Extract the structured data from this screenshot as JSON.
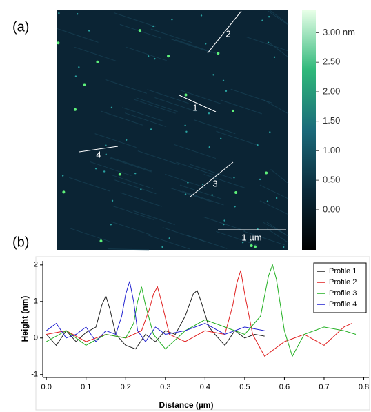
{
  "chart_data": [
    {
      "type": "image",
      "panel_label": "(a)",
      "colorbar_lim": [
        -0.68,
        3.38
      ],
      "colorbar_ticks": [
        {
          "value": 3,
          "label": "3.00 nm"
        },
        {
          "value": 2.5,
          "label": "2.50"
        },
        {
          "value": 2,
          "label": "2.00"
        },
        {
          "value": 1.5,
          "label": "1.50"
        },
        {
          "value": 1,
          "label": "1.00"
        },
        {
          "value": 0.5,
          "label": "0.50"
        },
        {
          "value": 0,
          "label": "0.00"
        }
      ],
      "annotations": [
        "1",
        "2",
        "3",
        "4"
      ],
      "scale_bar": "1 µm"
    },
    {
      "type": "line",
      "panel_label": "(b)",
      "x_label": "Distance (µm)",
      "y_label": "Height (nm)",
      "xlim": [
        -0.009,
        0.813
      ],
      "ylim": [
        -1.08,
        2.11
      ],
      "xticks": [
        {
          "value": 0,
          "label": "0.0"
        },
        0.1,
        0.2,
        0.3,
        0.4,
        0.5,
        0.6,
        0.7,
        0.8
      ],
      "yticks": [
        -1,
        0,
        1,
        2
      ],
      "legend": "top-right",
      "series": [
        {
          "name": "Profile 1",
          "color": "#222222",
          "x": [
            0,
            0.025,
            0.05,
            0.075,
            0.1,
            0.125,
            0.14,
            0.15,
            0.16,
            0.175,
            0.2,
            0.225,
            0.25,
            0.275,
            0.3,
            0.325,
            0.35,
            0.37,
            0.38,
            0.39,
            0.41,
            0.425,
            0.45,
            0.475,
            0.5,
            0.525,
            0.55
          ],
          "values": [
            0.1,
            -0.2,
            0.2,
            -0.1,
            0.15,
            0.3,
            0.9,
            1.15,
            0.8,
            0.1,
            -0.2,
            -0.3,
            0.1,
            -0.1,
            0.2,
            0.1,
            0.6,
            1.2,
            1.3,
            1.0,
            0.3,
            0.1,
            -0.2,
            0.2,
            0,
            0.1,
            0.05
          ]
        },
        {
          "name": "Profile 2",
          "color": "#e02020",
          "x": [
            0,
            0.05,
            0.1,
            0.15,
            0.2,
            0.24,
            0.26,
            0.27,
            0.28,
            0.29,
            0.31,
            0.35,
            0.4,
            0.45,
            0.47,
            0.48,
            0.49,
            0.5,
            0.52,
            0.55,
            0.6,
            0.65,
            0.7,
            0.75,
            0.77
          ],
          "values": [
            0.1,
            0.2,
            -0.1,
            0.1,
            0,
            0.2,
            0.8,
            1.2,
            1.4,
            1.0,
            0.1,
            -0.1,
            0.2,
            0.1,
            0.9,
            1.5,
            1.85,
            1.2,
            0.1,
            -0.5,
            -0.1,
            0.1,
            -0.2,
            0.3,
            0.4
          ]
        },
        {
          "name": "Profile 3",
          "color": "#22b022",
          "x": [
            0,
            0.05,
            0.1,
            0.15,
            0.2,
            0.22,
            0.23,
            0.24,
            0.25,
            0.27,
            0.3,
            0.35,
            0.4,
            0.45,
            0.5,
            0.54,
            0.56,
            0.57,
            0.58,
            0.6,
            0.62,
            0.65,
            0.7,
            0.75,
            0.78
          ],
          "values": [
            -0.1,
            0.2,
            -0.2,
            0.1,
            0,
            0.4,
            1.0,
            1.4,
            0.9,
            0.1,
            -0.3,
            0.2,
            0.5,
            0.3,
            0.1,
            0.6,
            1.7,
            2.0,
            1.6,
            0.2,
            -0.5,
            0.1,
            0.3,
            0.2,
            0.1
          ]
        },
        {
          "name": "Profile 4",
          "color": "#2020d0",
          "x": [
            0,
            0.025,
            0.05,
            0.075,
            0.1,
            0.125,
            0.15,
            0.175,
            0.19,
            0.2,
            0.21,
            0.22,
            0.23,
            0.25,
            0.275,
            0.3,
            0.35,
            0.4,
            0.45,
            0.5,
            0.55
          ],
          "values": [
            0.2,
            0.4,
            0,
            0.1,
            0.3,
            -0.1,
            0.2,
            0.1,
            0.6,
            1.2,
            1.55,
            1.0,
            0.2,
            -0.1,
            0.3,
            0.1,
            0.2,
            0.4,
            0.1,
            0.3,
            0.2
          ]
        }
      ]
    }
  ]
}
